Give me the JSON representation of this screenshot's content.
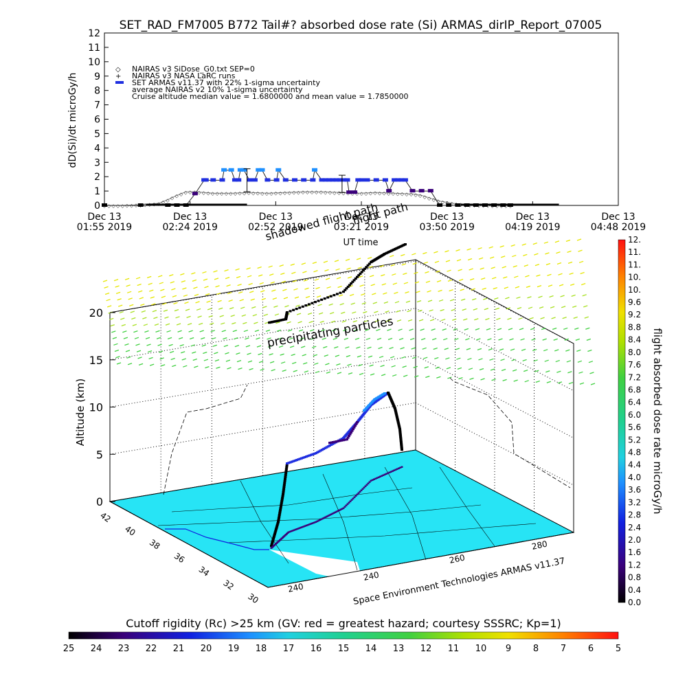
{
  "title": "SET_RAD_FM7005  B772 Tail#? absorbed dose rate (Si) ARMAS_dirIP_Report_07005",
  "colors": {
    "armas_blue": "#1f2fe0",
    "armas_light": "#1e90ff",
    "armas_dark": "#3a007a",
    "nairas_gray": "#888888",
    "map_fill": "#27e4f5",
    "precip_top": "#e6e600",
    "precip_bottom": "#40d040"
  },
  "chart_data": [
    {
      "type": "line",
      "ylabel": "dD(Si)/dt microGy/h",
      "xlabel": "UT time",
      "ylim": [
        0,
        12
      ],
      "yticks": [
        "0",
        "1",
        "2",
        "3",
        "4",
        "5",
        "6",
        "7",
        "8",
        "9",
        "10",
        "11",
        "12"
      ],
      "xticks": [
        {
          "date": "Dec 13",
          "time": "01:55 2019"
        },
        {
          "date": "Dec 13",
          "time": "02:24 2019"
        },
        {
          "date": "Dec 13",
          "time": "02:52 2019"
        },
        {
          "date": "Dec 13",
          "time": "03:21 2019"
        },
        {
          "date": "Dec 13",
          "time": "03:50 2019"
        },
        {
          "date": "Dec 13",
          "time": "04:19 2019"
        },
        {
          "date": "Dec 13",
          "time": "04:48 2019"
        }
      ],
      "legend": [
        {
          "symbol": "◇",
          "text": "NAIRAS v3 SiDose_G0.txt SEP=0"
        },
        {
          "symbol": "+",
          "text": "NAIRAS v3 NASA LaRC runs"
        },
        {
          "symbol": "■",
          "text": "SET ARMAS v11.37 with 22% 1-sigma uncertainty"
        },
        {
          "symbol": "",
          "text": "average NAIRAS v2 10% 1-sigma uncertainty"
        },
        {
          "symbol": "",
          "text": "Cruise altitude median value = 1.6800000 and mean value = 1.7850000"
        }
      ],
      "series": [
        {
          "name": "SET ARMAS v11.37 with 22% 1-sigma uncertainty",
          "x_minutes": [
            0,
            20,
            35,
            40,
            45,
            50,
            55,
            56,
            60,
            65,
            66,
            70,
            72,
            74,
            75,
            77,
            80,
            83,
            85,
            87,
            90,
            95,
            96,
            100,
            105,
            110,
            115,
            116,
            120,
            122,
            124,
            126,
            128,
            130,
            132,
            134,
            135,
            138,
            140,
            142,
            145,
            150,
            155,
            157,
            160,
            162,
            164,
            166,
            170,
            175,
            180,
            185,
            190,
            195,
            200,
            205,
            210,
            215,
            220,
            224
          ],
          "values": [
            0,
            0,
            0,
            0,
            0.0,
            0.8,
            1.75,
            1.75,
            1.75,
            1.75,
            2.45,
            2.45,
            1.75,
            1.75,
            2.45,
            2.45,
            1.75,
            1.75,
            2.45,
            2.45,
            1.75,
            1.75,
            2.45,
            1.75,
            1.75,
            1.75,
            1.75,
            2.45,
            1.75,
            1.75,
            1.75,
            1.75,
            1.75,
            1.75,
            1.75,
            1.75,
            0.9,
            0.9,
            1.75,
            1.75,
            1.75,
            1.75,
            1.75,
            1.0,
            1.75,
            1.75,
            1.75,
            1.75,
            1.0,
            1.0,
            1.0,
            0,
            0,
            0,
            0,
            0,
            0,
            0,
            0,
            0
          ]
        },
        {
          "name": "NAIRAS v3 SiDose_G0.txt SEP=0",
          "x_minutes": [
            0,
            10,
            20,
            30,
            35,
            40,
            45,
            50,
            55,
            60,
            70,
            80,
            90,
            100,
            110,
            120,
            130,
            140,
            150,
            160,
            170,
            175,
            180,
            185,
            190,
            195,
            200,
            210,
            220,
            224
          ],
          "values": [
            0,
            0,
            0.05,
            0.15,
            0.4,
            0.7,
            0.95,
            0.95,
            0.9,
            0.85,
            0.85,
            0.9,
            0.85,
            0.9,
            0.95,
            0.95,
            0.9,
            0.85,
            0.9,
            0.85,
            0.8,
            0.7,
            0.5,
            0.3,
            0.2,
            0.1,
            0.05,
            0.02,
            0,
            0
          ]
        }
      ]
    },
    {
      "type": "scatter",
      "zlabel": "Altitude (km)",
      "ztick_labels": [
        "0",
        "5",
        "10",
        "15",
        "20"
      ],
      "lat_labels": [
        "30",
        "32",
        "34",
        "36",
        "38",
        "40",
        "42"
      ],
      "lon_labels": [
        "240",
        "240",
        "260",
        "280"
      ],
      "annotations": [
        "precipitating particles",
        "flight path",
        "shadowed flight path"
      ],
      "footer": "Space Environment Technologies ARMAS v11.37",
      "colorbar": {
        "label": "flight absorbed dose rate microGy/h",
        "ticks": [
          "0.0",
          "0.4",
          "0.8",
          "1.2",
          "1.6",
          "2.0",
          "2.4",
          "2.8",
          "3.2",
          "3.6",
          "4.0",
          "4.4",
          "4.8",
          "5.2",
          "5.6",
          "6.0",
          "6.4",
          "6.8",
          "7.2",
          "7.6",
          "8.0",
          "8.4",
          "8.8",
          "9.2",
          "9.6",
          "10.",
          "10.",
          "11.",
          "11.",
          "12."
        ]
      }
    },
    {
      "type": "heatmap",
      "title": "Cutoff rigidity (Rc) >25 km (GV: red = greatest hazard; courtesy SSSRC; Kp=1)",
      "ticks": [
        "25",
        "24",
        "23",
        "22",
        "21",
        "20",
        "19",
        "18",
        "17",
        "16",
        "15",
        "14",
        "13",
        "12",
        "11",
        "10",
        "9",
        "8",
        "7",
        "6",
        "5"
      ]
    }
  ]
}
